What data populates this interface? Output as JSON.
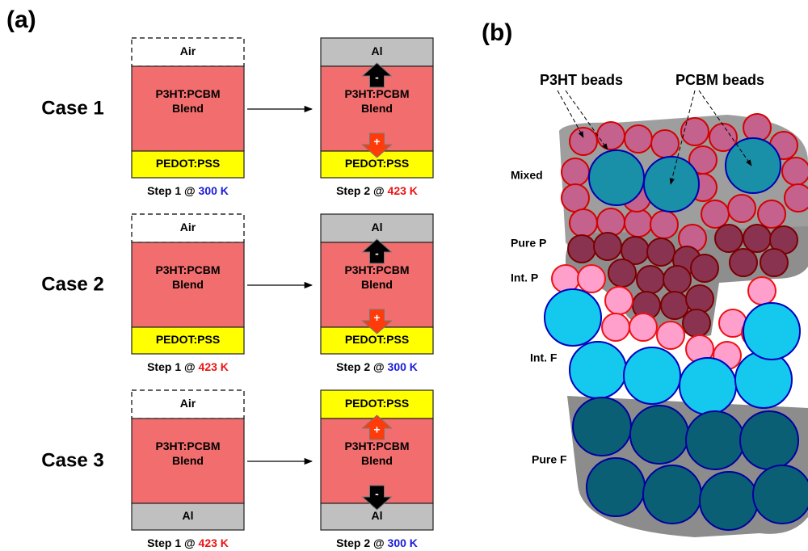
{
  "panel_a": {
    "label": "(a)",
    "cases": [
      {
        "label": "Case 1",
        "steps": [
          {
            "layers": [
              {
                "lines": [
                  "Air"
                ],
                "color": "#ffffff",
                "dashed": true
              },
              {
                "lines": [
                  "P3HT:PCBM",
                  "Blend"
                ],
                "color": "#f26d6d"
              },
              {
                "lines": [
                  "PEDOT:PSS"
                ],
                "color": "#ffff00"
              }
            ],
            "caption": {
              "prefix": "Step 1 @",
              "temp": "300 K",
              "color": "#1a1adc"
            }
          },
          {
            "layers": [
              {
                "lines": [
                  "Al"
                ],
                "color": "#c0c0c0"
              },
              {
                "lines": [
                  "P3HT:PCBM",
                  "Blend"
                ],
                "color": "#f26d6d"
              },
              {
                "lines": [
                  "PEDOT:PSS"
                ],
                "color": "#ffff00"
              }
            ],
            "charges": {
              "top": {
                "sign": "-",
                "color": "#000000"
              },
              "bottom": {
                "sign": "+",
                "color": "#ff3b0a"
              }
            },
            "caption": {
              "prefix": "Step 2 @",
              "temp": "423 K",
              "color": "#ee1111"
            }
          }
        ]
      },
      {
        "label": "Case 2",
        "steps": [
          {
            "layers": [
              {
                "lines": [
                  "Air"
                ],
                "color": "#ffffff",
                "dashed": true
              },
              {
                "lines": [
                  "P3HT:PCBM",
                  "Blend"
                ],
                "color": "#f26d6d"
              },
              {
                "lines": [
                  "PEDOT:PSS"
                ],
                "color": "#ffff00"
              }
            ],
            "caption": {
              "prefix": "Step 1 @",
              "temp": "423 K",
              "color": "#ee1111"
            }
          },
          {
            "layers": [
              {
                "lines": [
                  "Al"
                ],
                "color": "#c0c0c0"
              },
              {
                "lines": [
                  "P3HT:PCBM",
                  "Blend"
                ],
                "color": "#f26d6d"
              },
              {
                "lines": [
                  "PEDOT:PSS"
                ],
                "color": "#ffff00"
              }
            ],
            "charges": {
              "top": {
                "sign": "-",
                "color": "#000000"
              },
              "bottom": {
                "sign": "+",
                "color": "#ff3b0a"
              }
            },
            "caption": {
              "prefix": "Step 2 @",
              "temp": "300 K",
              "color": "#1a1adc"
            }
          }
        ]
      },
      {
        "label": "Case 3",
        "steps": [
          {
            "layers": [
              {
                "lines": [
                  "Air"
                ],
                "color": "#ffffff",
                "dashed": true
              },
              {
                "lines": [
                  "P3HT:PCBM",
                  "Blend"
                ],
                "color": "#f26d6d"
              },
              {
                "lines": [
                  "Al"
                ],
                "color": "#c0c0c0"
              }
            ],
            "caption": {
              "prefix": "Step 1 @",
              "temp": "423 K",
              "color": "#ee1111"
            }
          },
          {
            "layers": [
              {
                "lines": [
                  "PEDOT:PSS"
                ],
                "color": "#ffff00"
              },
              {
                "lines": [
                  "P3HT:PCBM",
                  "Blend"
                ],
                "color": "#f26d6d"
              },
              {
                "lines": [
                  "Al"
                ],
                "color": "#c0c0c0"
              }
            ],
            "charges": {
              "top": {
                "sign": "+",
                "color": "#ff3b0a"
              },
              "bottom": {
                "sign": "-",
                "color": "#000000"
              }
            },
            "caption": {
              "prefix": "Step 2 @",
              "temp": "300 K",
              "color": "#1a1adc"
            }
          }
        ]
      }
    ]
  },
  "panel_b": {
    "label": "(b)",
    "bead_labels": [
      "P3HT beads",
      "PCBM beads"
    ],
    "regions": [
      "Mixed",
      "Pure P",
      "Int. P",
      "Int. F",
      "Pure F"
    ]
  }
}
